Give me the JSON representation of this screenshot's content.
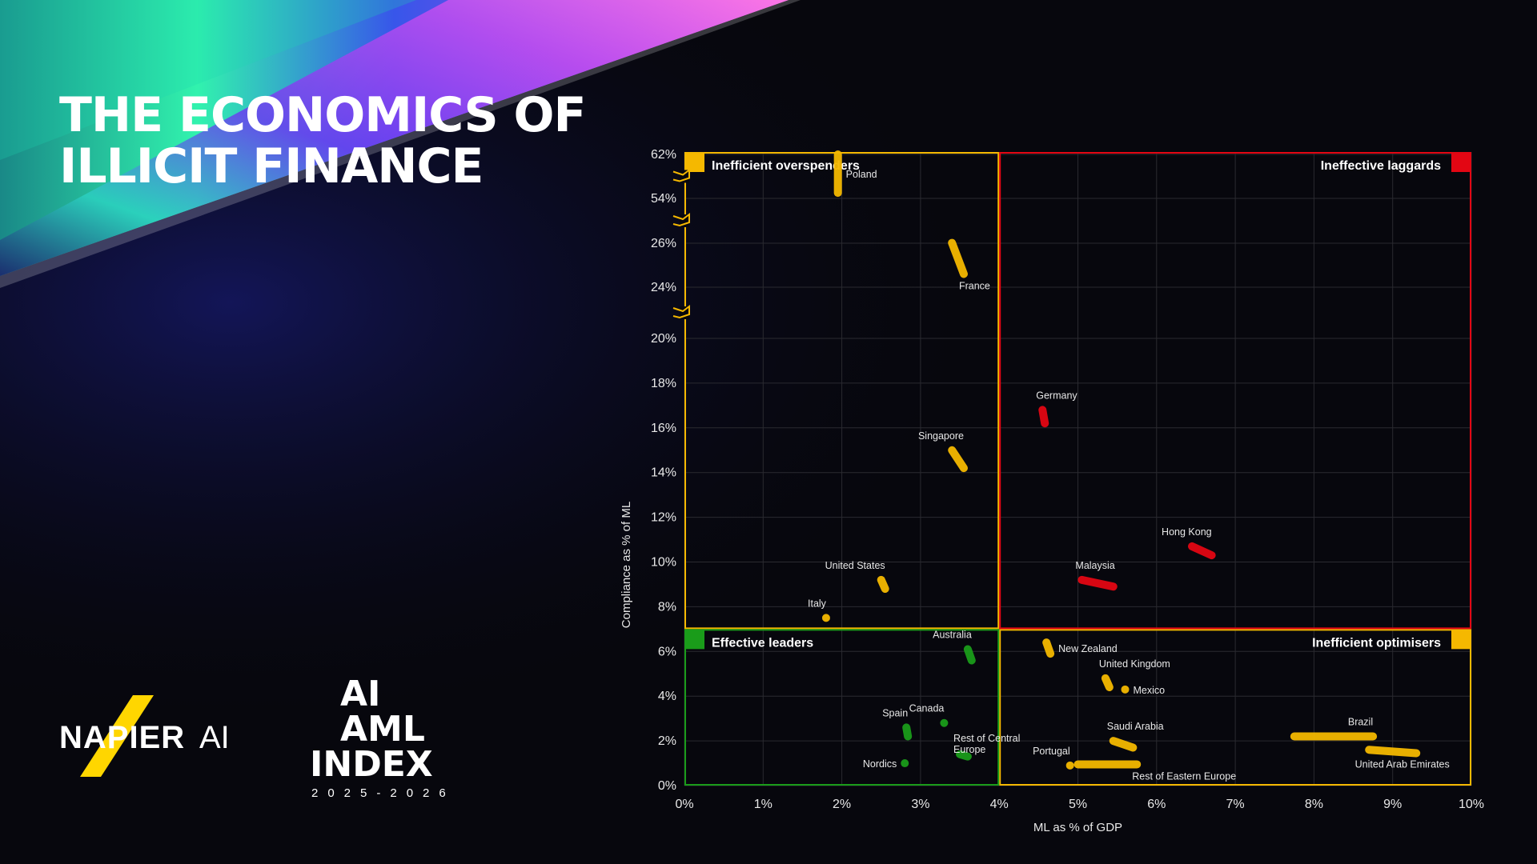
{
  "title": {
    "line1": "THE ECONOMICS OF",
    "line2": "ILLICIT FINANCE"
  },
  "logos": {
    "napier": {
      "text_left": "NAPIER",
      "text_right": "AI",
      "mark_color": "#ffd600"
    },
    "aml_index": {
      "line1": "AI",
      "line2": "AML",
      "line3": "INDEX",
      "years": "2025-2026"
    }
  },
  "colors": {
    "overspenders": "#f5b800",
    "laggards": "#e30613",
    "leaders": "#1a9c1a",
    "optimisers": "#f5b800",
    "grid": "#2a2a30"
  },
  "chart_data": {
    "type": "scatter",
    "xlabel": "ML as % of GDP",
    "ylabel": "Compliance as % of ML",
    "x_ticks": [
      "0%",
      "1%",
      "2%",
      "3%",
      "4%",
      "5%",
      "6%",
      "7%",
      "8%",
      "9%",
      "10%"
    ],
    "xlim": [
      0,
      10
    ],
    "y_ticks": [
      {
        "label": "0%",
        "value": 0
      },
      {
        "label": "2%",
        "value": 2
      },
      {
        "label": "4%",
        "value": 4
      },
      {
        "label": "6%",
        "value": 6
      },
      {
        "label": "8%",
        "value": 8
      },
      {
        "label": "10%",
        "value": 10
      },
      {
        "label": "12%",
        "value": 12
      },
      {
        "label": "14%",
        "value": 14
      },
      {
        "label": "16%",
        "value": 16
      },
      {
        "label": "18%",
        "value": 18
      },
      {
        "label": "20%",
        "value": 20
      },
      {
        "label": "24%",
        "value": 24
      },
      {
        "label": "26%",
        "value": 26
      },
      {
        "label": "54%",
        "value": 54
      },
      {
        "label": "62%",
        "value": 62
      }
    ],
    "y_axis_breaks": [
      22,
      40,
      58
    ],
    "x_divider": 4,
    "y_divider": 7,
    "grid": true,
    "quadrants": [
      {
        "name": "Inefficient overspenders",
        "position": "top-left",
        "color": "#f5b800"
      },
      {
        "name": "Ineffective laggards",
        "position": "top-right",
        "color": "#e30613"
      },
      {
        "name": "Effective leaders",
        "position": "bottom-left",
        "color": "#1a9c1a"
      },
      {
        "name": "Inefficient optimisers",
        "position": "bottom-right",
        "color": "#f5b800"
      }
    ],
    "points": [
      {
        "label": "Poland",
        "x1": 1.95,
        "y1": 62,
        "x2": 1.95,
        "y2": 55,
        "color": "#f5b800",
        "label_pos": "right"
      },
      {
        "label": "France",
        "x1": 3.4,
        "y1": 26.2,
        "x2": 3.55,
        "y2": 24.6,
        "color": "#f5b800",
        "label_pos": "below-right"
      },
      {
        "label": "Singapore",
        "x1": 3.4,
        "y1": 15.0,
        "x2": 3.55,
        "y2": 14.2,
        "color": "#f5b800",
        "label_pos": "above-left"
      },
      {
        "label": "United States",
        "x1": 2.5,
        "y1": 9.2,
        "x2": 2.55,
        "y2": 8.8,
        "color": "#f5b800",
        "label_pos": "above-left"
      },
      {
        "label": "Italy",
        "x1": 1.8,
        "y1": 7.5,
        "x2": 1.8,
        "y2": 7.5,
        "color": "#f5b800",
        "label_pos": "above-left"
      },
      {
        "label": "Germany",
        "x1": 4.55,
        "y1": 16.8,
        "x2": 4.58,
        "y2": 16.2,
        "color": "#e30613",
        "label_pos": "above-right"
      },
      {
        "label": "Hong Kong",
        "x1": 6.45,
        "y1": 10.7,
        "x2": 6.7,
        "y2": 10.3,
        "color": "#e30613",
        "label_pos": "above-left"
      },
      {
        "label": "Malaysia",
        "x1": 5.05,
        "y1": 9.2,
        "x2": 5.45,
        "y2": 8.9,
        "color": "#e30613",
        "label_pos": "above-right"
      },
      {
        "label": "Australia",
        "x1": 3.6,
        "y1": 6.1,
        "x2": 3.65,
        "y2": 5.6,
        "color": "#1a9c1a",
        "label_pos": "above-left"
      },
      {
        "label": "Canada",
        "x1": 3.3,
        "y1": 2.8,
        "x2": 3.3,
        "y2": 2.8,
        "color": "#1a9c1a",
        "label_pos": "above-left"
      },
      {
        "label": "Spain",
        "x1": 2.82,
        "y1": 2.6,
        "x2": 2.84,
        "y2": 2.2,
        "color": "#1a9c1a",
        "label_pos": "above-left"
      },
      {
        "label": "Rest of Central Europe",
        "x1": 3.5,
        "y1": 1.4,
        "x2": 3.6,
        "y2": 1.3,
        "color": "#1a9c1a",
        "label_pos": "above-right"
      },
      {
        "label": "Nordics",
        "x1": 2.8,
        "y1": 1.0,
        "x2": 2.8,
        "y2": 1.0,
        "color": "#1a9c1a",
        "label_pos": "left"
      },
      {
        "label": "New Zealand",
        "x1": 4.6,
        "y1": 6.4,
        "x2": 4.65,
        "y2": 5.9,
        "color": "#f5b800",
        "label_pos": "right"
      },
      {
        "label": "United Kingdom",
        "x1": 5.35,
        "y1": 4.8,
        "x2": 5.4,
        "y2": 4.4,
        "color": "#f5b800",
        "label_pos": "above-right"
      },
      {
        "label": "Mexico",
        "x1": 5.6,
        "y1": 4.3,
        "x2": 5.6,
        "y2": 4.3,
        "color": "#f5b800",
        "label_pos": "right"
      },
      {
        "label": "Saudi Arabia",
        "x1": 5.45,
        "y1": 2.0,
        "x2": 5.7,
        "y2": 1.7,
        "color": "#f5b800",
        "label_pos": "above-right"
      },
      {
        "label": "Portugal",
        "x1": 4.9,
        "y1": 0.9,
        "x2": 4.9,
        "y2": 0.9,
        "color": "#f5b800",
        "label_pos": "above-left"
      },
      {
        "label": "Rest of Eastern Europe",
        "x1": 5.0,
        "y1": 0.95,
        "x2": 5.75,
        "y2": 0.95,
        "color": "#f5b800",
        "label_pos": "below-right"
      },
      {
        "label": "Brazil",
        "x1": 7.75,
        "y1": 2.2,
        "x2": 8.75,
        "y2": 2.2,
        "color": "#f5b800",
        "label_pos": "above-left"
      },
      {
        "label": "United Arab Emirates",
        "x1": 8.7,
        "y1": 1.6,
        "x2": 9.3,
        "y2": 1.45,
        "color": "#f5b800",
        "label_pos": "below"
      }
    ]
  }
}
